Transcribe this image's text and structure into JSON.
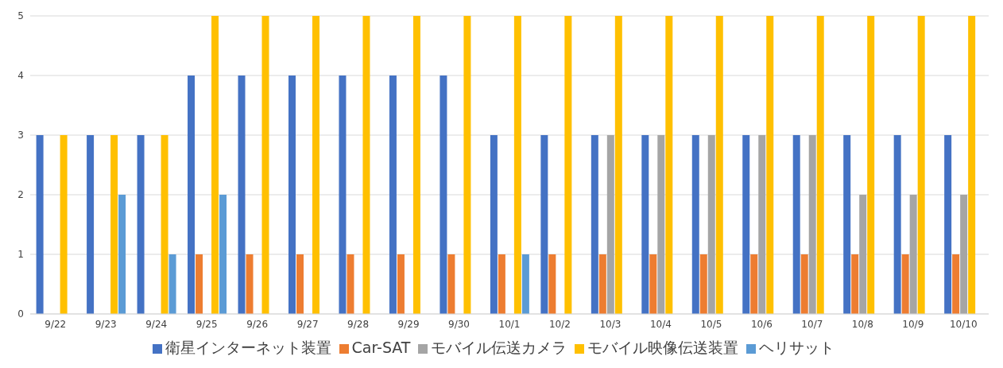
{
  "chart_data": {
    "type": "bar",
    "categories": [
      "9/22",
      "9/23",
      "9/24",
      "9/25",
      "9/26",
      "9/27",
      "9/28",
      "9/29",
      "9/30",
      "10/1",
      "10/2",
      "10/3",
      "10/4",
      "10/5",
      "10/6",
      "10/7",
      "10/8",
      "10/9",
      "10/10"
    ],
    "series": [
      {
        "name": "衛星インターネット装置",
        "color": "#4472c4",
        "values": [
          3,
          3,
          3,
          4,
          4,
          4,
          4,
          4,
          4,
          3,
          3,
          3,
          3,
          3,
          3,
          3,
          3,
          3,
          3
        ]
      },
      {
        "name": "Car-SAT",
        "color": "#ed7d31",
        "values": [
          0,
          0,
          0,
          1,
          1,
          1,
          1,
          1,
          1,
          1,
          1,
          1,
          1,
          1,
          1,
          1,
          1,
          1,
          1
        ]
      },
      {
        "name": "モバイル伝送カメラ",
        "color": "#a5a5a5",
        "values": [
          0,
          0,
          0,
          0,
          0,
          0,
          0,
          0,
          0,
          0,
          0,
          3,
          3,
          3,
          3,
          3,
          2,
          2,
          2
        ]
      },
      {
        "name": "モバイル映像伝送装置",
        "color": "#ffc000",
        "values": [
          3,
          3,
          3,
          5,
          5,
          5,
          5,
          5,
          5,
          5,
          5,
          5,
          5,
          5,
          5,
          5,
          5,
          5,
          5
        ]
      },
      {
        "name": "ヘリサット",
        "color": "#5b9bd5",
        "values": [
          0,
          2,
          1,
          2,
          0,
          0,
          0,
          0,
          0,
          1,
          0,
          0,
          0,
          0,
          0,
          0,
          0,
          0,
          0
        ]
      }
    ],
    "ylim": [
      0,
      5
    ],
    "yticks": [
      0,
      1,
      2,
      3,
      4,
      5
    ],
    "grid": "y",
    "legend": "bottom"
  }
}
